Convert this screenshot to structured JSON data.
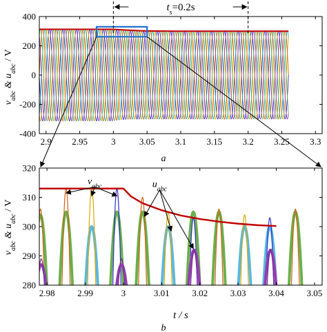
{
  "chart_data": [
    {
      "id": "top",
      "type": "line",
      "panel_label": "a",
      "ylabel": "v_abc & u_abc / V",
      "xlim": [
        2.89,
        3.31
      ],
      "ylim": [
        -400,
        400
      ],
      "xticks": [
        "2.9",
        "2.95",
        "3",
        "3.05",
        "3.1",
        "3.15",
        "3.2",
        "3.25",
        "3.3"
      ],
      "xtick_values": [
        2.9,
        2.95,
        3.0,
        3.05,
        3.1,
        3.15,
        3.2,
        3.25,
        3.3
      ],
      "yticks": [
        "400",
        "200",
        "0",
        "-200",
        "-400"
      ],
      "ytick_values": [
        400,
        200,
        0,
        -200,
        -400
      ],
      "grid": false,
      "annotation": {
        "text": "t_s=0.2s",
        "x_start": 3.0,
        "x_end": 3.2,
        "y": 445
      },
      "zoom_box": {
        "x_start": 2.975,
        "x_end": 3.05,
        "y_low": 262,
        "y_high": 330
      },
      "envelope": {
        "color": "#c00000",
        "x": [
          2.89,
          3.0,
          3.02,
          3.04,
          3.06,
          3.1,
          3.15,
          3.2,
          3.26
        ],
        "y": [
          313,
          313,
          307,
          303,
          301,
          300,
          300,
          300,
          300
        ]
      },
      "sinusoids": {
        "amplitude": 313,
        "frequency_hz": 50,
        "x_end": 3.26,
        "phase_colors": [
          "#2e2ec8",
          "#d9a700",
          "#2bb0a0",
          "#d06010",
          "#6ab04c",
          "#9040b0"
        ]
      }
    },
    {
      "id": "bottom",
      "type": "line",
      "panel_label": "b",
      "xlabel": "t / s",
      "ylabel": "v_abc & u_abc / V",
      "xlim": [
        2.978,
        3.052
      ],
      "ylim": [
        280,
        320
      ],
      "xticks": [
        "2.98",
        "2.99",
        "3",
        "3.01",
        "3.02",
        "3.03",
        "3.04",
        "3.05"
      ],
      "xtick_values": [
        2.98,
        2.99,
        3.0,
        3.01,
        3.02,
        3.03,
        3.04,
        3.05
      ],
      "yticks": [
        "320",
        "310",
        "300",
        "290",
        "280"
      ],
      "ytick_values": [
        320,
        310,
        300,
        290,
        280
      ],
      "grid": false,
      "labels": [
        {
          "text": "v_abc",
          "x": 2.9925,
          "y": 314.5
        },
        {
          "text": "u_abc",
          "x": 3.0095,
          "y": 313.5
        }
      ],
      "envelope": {
        "color": "#c00000",
        "x": [
          2.978,
          3.0,
          3.002,
          3.005,
          3.01,
          3.015,
          3.02,
          3.025,
          3.03,
          3.035,
          3.04
        ],
        "y": [
          313,
          313,
          310.3,
          308.0,
          305.6,
          303.8,
          302.6,
          301.7,
          301.0,
          300.5,
          300.2
        ]
      },
      "peaks": [
        {
          "t": 2.9783,
          "v": 306,
          "u": 304,
          "color_v": "#d06010",
          "color_u": "#6ab04c"
        },
        {
          "t": 2.9785,
          "v": 289,
          "u": 287,
          "color_v": "#7a2a9a",
          "color_u": "#9040b0"
        },
        {
          "t": 2.985,
          "v": 313,
          "u": 305,
          "color_v": "#d06010",
          "color_u": "#6ab04c"
        },
        {
          "t": 2.9917,
          "v": 313,
          "u": 300,
          "color_v": "#d9a700",
          "color_u": "#5ab8e0"
        },
        {
          "t": 2.9983,
          "v": 313,
          "u": 305,
          "color_v": "#2e2ec8",
          "color_u": "#6ab04c"
        },
        {
          "t": 2.9995,
          "v": 289,
          "u": 287,
          "color_v": "#7a2a9a",
          "color_u": "#9040b0"
        },
        {
          "t": 3.005,
          "v": 310,
          "u": 305,
          "color_v": "#d06010",
          "color_u": "#6ab04c"
        },
        {
          "t": 3.0117,
          "v": 305,
          "u": 300,
          "color_v": "#d9a700",
          "color_u": "#5ab8e0"
        },
        {
          "t": 3.0183,
          "v": 303,
          "u": 305,
          "color_v": "#2e2ec8",
          "color_u": "#6ab04c"
        },
        {
          "t": 3.0185,
          "v": 292,
          "u": 292,
          "color_v": "#7a2a9a",
          "color_u": "#9040b0"
        },
        {
          "t": 3.025,
          "v": 306,
          "u": 305,
          "color_v": "#d06010",
          "color_u": "#6ab04c"
        },
        {
          "t": 3.0317,
          "v": 304,
          "u": 300,
          "color_v": "#d9a700",
          "color_u": "#5ab8e0"
        },
        {
          "t": 3.0383,
          "v": 303,
          "u": 300,
          "color_v": "#2e2ec8",
          "color_u": "#5ab8e0"
        },
        {
          "t": 3.0385,
          "v": 292,
          "u": 292,
          "color_v": "#7a2a9a",
          "color_u": "#9040b0"
        },
        {
          "t": 3.045,
          "v": 306,
          "u": 305,
          "color_v": "#d06010",
          "color_u": "#6ab04c"
        }
      ]
    }
  ]
}
